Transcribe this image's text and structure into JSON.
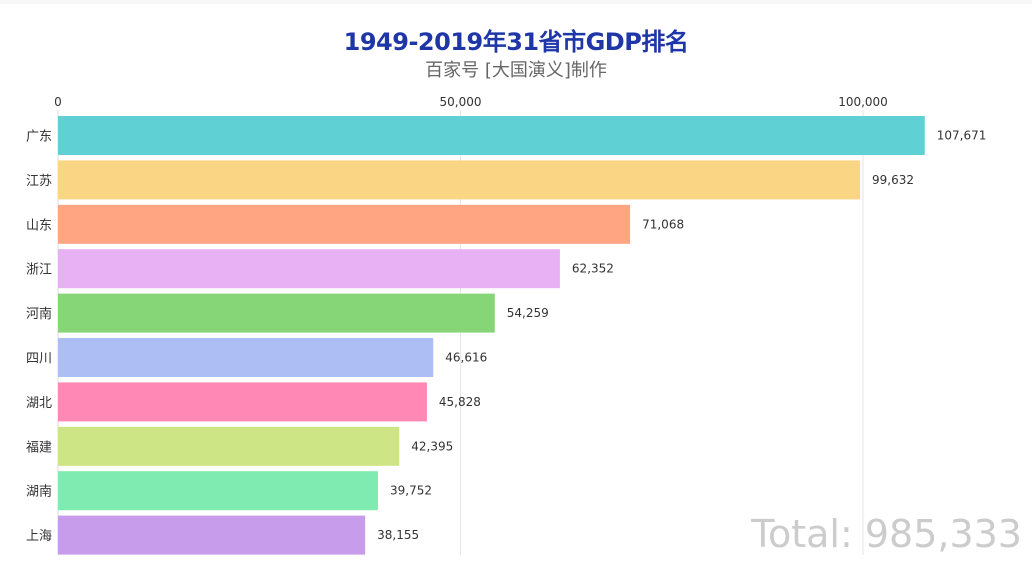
{
  "title": "1949-2019年31省市GDP排名",
  "subtitle": "百家号 [大国演义]制作",
  "total_label": "Total: 985,333",
  "chart_data": {
    "type": "bar",
    "orientation": "horizontal",
    "title": "1949-2019年31省市GDP排名",
    "subtitle": "百家号 [大国演义]制作",
    "xlabel": "",
    "ylabel": "",
    "xlim": [
      0,
      107671
    ],
    "x_ticks": [
      0,
      50000,
      100000
    ],
    "x_tick_labels": [
      "0",
      "50,000",
      "100,000"
    ],
    "grid": true,
    "categories": [
      "广东",
      "江苏",
      "山东",
      "浙江",
      "河南",
      "四川",
      "湖北",
      "福建",
      "湖南",
      "上海"
    ],
    "values": [
      107671,
      99632,
      71068,
      62352,
      54259,
      46616,
      45828,
      42395,
      39752,
      38155
    ],
    "value_labels": [
      "107,671",
      "99,632",
      "71,068",
      "62,352",
      "54,259",
      "46,616",
      "45,828",
      "42,395",
      "39,752",
      "38,155"
    ],
    "colors": [
      "#5fd1d4",
      "#fad684",
      "#ffa581",
      "#e8b1f3",
      "#86d677",
      "#adbef4",
      "#ff88b5",
      "#cde584",
      "#80ebb1",
      "#c79ceb"
    ],
    "annotation": "Total: 985,333"
  }
}
